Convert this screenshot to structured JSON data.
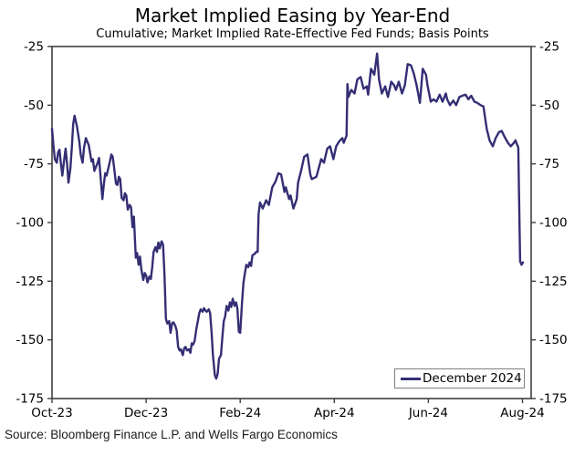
{
  "header": {
    "title": "Market Implied Easing by Year-End",
    "subtitle": "Cumulative; Market Implied Rate-Effective Fed Funds; Basis Points"
  },
  "source_note": "Source: Bloomberg Finance L.P. and Wells Fargo Economics",
  "legend": {
    "label": "December 2024"
  },
  "colors": {
    "line": "#342E74",
    "axis": "#3f3f3f",
    "text": "#000000",
    "legend_border": "#7f7f7f",
    "background": "#ffffff"
  },
  "chart_data": {
    "type": "line",
    "title": "Market Implied Easing by Year-End",
    "subtitle": "Cumulative; Market Implied Rate-Effective Fed Funds; Basis Points",
    "xlabel": "",
    "ylabel": "Basis Points",
    "ylim": [
      -175,
      -25
    ],
    "y_ticks": [
      -25,
      -50,
      -75,
      -100,
      -125,
      -150,
      -175
    ],
    "y_axis_sides": [
      "left",
      "right"
    ],
    "x_tick_labels": [
      "Oct-23",
      "Dec-23",
      "Feb-24",
      "Apr-24",
      "Jun-24",
      "Aug-24"
    ],
    "x_tick_positions_months": [
      0,
      2,
      4,
      6,
      8,
      10
    ],
    "x_unit": "months since Oct-2023",
    "grid": false,
    "legend_position": "lower right",
    "series": [
      {
        "name": "December 2024",
        "color": "#342E74",
        "points": [
          [
            0,
            -60
          ],
          [
            0.03,
            -67
          ],
          [
            0.06,
            -73
          ],
          [
            0.1,
            -74.5
          ],
          [
            0.13,
            -70
          ],
          [
            0.16,
            -69
          ],
          [
            0.19,
            -75
          ],
          [
            0.22,
            -80
          ],
          [
            0.26,
            -73
          ],
          [
            0.29,
            -68.5
          ],
          [
            0.32,
            -75
          ],
          [
            0.35,
            -83
          ],
          [
            0.39,
            -77
          ],
          [
            0.42,
            -68
          ],
          [
            0.45,
            -58
          ],
          [
            0.48,
            -54.5
          ],
          [
            0.53,
            -59
          ],
          [
            0.58,
            -65.5
          ],
          [
            0.61,
            -71
          ],
          [
            0.65,
            -74.5
          ],
          [
            0.68,
            -68
          ],
          [
            0.72,
            -64
          ],
          [
            0.78,
            -67
          ],
          [
            0.84,
            -74
          ],
          [
            0.87,
            -73
          ],
          [
            0.9,
            -78
          ],
          [
            0.94,
            -76
          ],
          [
            0.97,
            -74.5
          ],
          [
            1.0,
            -72.5
          ],
          [
            1.03,
            -80
          ],
          [
            1.07,
            -90
          ],
          [
            1.1,
            -84
          ],
          [
            1.13,
            -79
          ],
          [
            1.16,
            -80
          ],
          [
            1.19,
            -77.5
          ],
          [
            1.23,
            -74
          ],
          [
            1.26,
            -71
          ],
          [
            1.29,
            -72
          ],
          [
            1.32,
            -76.5
          ],
          [
            1.36,
            -83.5
          ],
          [
            1.39,
            -84
          ],
          [
            1.42,
            -80.5
          ],
          [
            1.45,
            -81.5
          ],
          [
            1.48,
            -89.5
          ],
          [
            1.52,
            -90.5
          ],
          [
            1.55,
            -87.5
          ],
          [
            1.58,
            -88.5
          ],
          [
            1.61,
            -94.5
          ],
          [
            1.65,
            -92.5
          ],
          [
            1.68,
            -93.5
          ],
          [
            1.71,
            -102
          ],
          [
            1.74,
            -97.5
          ],
          [
            1.78,
            -115
          ],
          [
            1.81,
            -113
          ],
          [
            1.84,
            -118
          ],
          [
            1.87,
            -114.5
          ],
          [
            1.9,
            -120
          ],
          [
            1.94,
            -124.5
          ],
          [
            1.97,
            -121.5
          ],
          [
            2.0,
            -122.5
          ],
          [
            2.03,
            -125.5
          ],
          [
            2.07,
            -123
          ],
          [
            2.1,
            -124
          ],
          [
            2.13,
            -119
          ],
          [
            2.16,
            -112.5
          ],
          [
            2.2,
            -110.5
          ],
          [
            2.23,
            -112.5
          ],
          [
            2.26,
            -108.5
          ],
          [
            2.29,
            -111
          ],
          [
            2.33,
            -108
          ],
          [
            2.36,
            -109.5
          ],
          [
            2.39,
            -122
          ],
          [
            2.42,
            -141
          ],
          [
            2.45,
            -143
          ],
          [
            2.49,
            -142
          ],
          [
            2.52,
            -147
          ],
          [
            2.55,
            -143
          ],
          [
            2.58,
            -142.5
          ],
          [
            2.62,
            -144
          ],
          [
            2.65,
            -146
          ],
          [
            2.68,
            -153
          ],
          [
            2.71,
            -154.5
          ],
          [
            2.74,
            -154
          ],
          [
            2.78,
            -156.5
          ],
          [
            2.81,
            -153.5
          ],
          [
            2.84,
            -153
          ],
          [
            2.87,
            -154.5
          ],
          [
            2.91,
            -154
          ],
          [
            2.94,
            -155.5
          ],
          [
            2.97,
            -151.5
          ],
          [
            3.0,
            -152
          ],
          [
            3.03,
            -150.5
          ],
          [
            3.07,
            -145
          ],
          [
            3.1,
            -142
          ],
          [
            3.13,
            -138.5
          ],
          [
            3.16,
            -137
          ],
          [
            3.2,
            -138
          ],
          [
            3.23,
            -136.5
          ],
          [
            3.26,
            -137.5
          ],
          [
            3.29,
            -138
          ],
          [
            3.33,
            -137
          ],
          [
            3.36,
            -138.5
          ],
          [
            3.39,
            -146.5
          ],
          [
            3.42,
            -156.5
          ],
          [
            3.46,
            -165
          ],
          [
            3.49,
            -166.5
          ],
          [
            3.52,
            -164.5
          ],
          [
            3.55,
            -158
          ],
          [
            3.59,
            -156.5
          ],
          [
            3.62,
            -149
          ],
          [
            3.65,
            -142
          ],
          [
            3.68,
            -140
          ],
          [
            3.71,
            -135.5
          ],
          [
            3.75,
            -137.5
          ],
          [
            3.78,
            -134
          ],
          [
            3.81,
            -136
          ],
          [
            3.84,
            -132.5
          ],
          [
            3.88,
            -135.5
          ],
          [
            3.91,
            -134
          ],
          [
            3.94,
            -136.5
          ],
          [
            3.97,
            -146.5
          ],
          [
            4.0,
            -147
          ],
          [
            4.04,
            -133.5
          ],
          [
            4.07,
            -125.5
          ],
          [
            4.1,
            -121.5
          ],
          [
            4.13,
            -118
          ],
          [
            4.17,
            -119
          ],
          [
            4.2,
            -117
          ],
          [
            4.23,
            -118.5
          ],
          [
            4.26,
            -114
          ],
          [
            4.3,
            -113.5
          ],
          [
            4.34,
            -112.5
          ],
          [
            4.37,
            -112.5
          ],
          [
            4.39,
            -96.5
          ],
          [
            4.42,
            -91.5
          ],
          [
            4.48,
            -94
          ],
          [
            4.55,
            -90.5
          ],
          [
            4.61,
            -92.5
          ],
          [
            4.68,
            -85
          ],
          [
            4.75,
            -82.5
          ],
          [
            4.81,
            -79
          ],
          [
            4.87,
            -79.5
          ],
          [
            4.94,
            -87
          ],
          [
            4.97,
            -85
          ],
          [
            5.04,
            -90
          ],
          [
            5.07,
            -88.5
          ],
          [
            5.13,
            -94
          ],
          [
            5.2,
            -90
          ],
          [
            5.23,
            -83
          ],
          [
            5.3,
            -77.5
          ],
          [
            5.36,
            -72
          ],
          [
            5.43,
            -71
          ],
          [
            5.49,
            -79.5
          ],
          [
            5.52,
            -81.5
          ],
          [
            5.62,
            -80.5
          ],
          [
            5.72,
            -73
          ],
          [
            5.78,
            -74.5
          ],
          [
            5.85,
            -68.5
          ],
          [
            5.91,
            -67.5
          ],
          [
            5.98,
            -73
          ],
          [
            6.04,
            -67.5
          ],
          [
            6.1,
            -65.5
          ],
          [
            6.17,
            -64
          ],
          [
            6.2,
            -66
          ],
          [
            6.23,
            -64.5
          ],
          [
            6.26,
            -63
          ],
          [
            6.28,
            -41
          ],
          [
            6.3,
            -46.5
          ],
          [
            6.36,
            -43.5
          ],
          [
            6.43,
            -45
          ],
          [
            6.49,
            -39
          ],
          [
            6.56,
            -38
          ],
          [
            6.62,
            -43
          ],
          [
            6.69,
            -42
          ],
          [
            6.72,
            -45.5
          ],
          [
            6.78,
            -34.5
          ],
          [
            6.85,
            -37
          ],
          [
            6.91,
            -28
          ],
          [
            6.95,
            -39
          ],
          [
            7.01,
            -45
          ],
          [
            7.08,
            -42
          ],
          [
            7.14,
            -46.5
          ],
          [
            7.21,
            -40
          ],
          [
            7.27,
            -41.5
          ],
          [
            7.31,
            -43.5
          ],
          [
            7.37,
            -40
          ],
          [
            7.44,
            -45
          ],
          [
            7.5,
            -41.5
          ],
          [
            7.56,
            -32.5
          ],
          [
            7.63,
            -33
          ],
          [
            7.69,
            -36.5
          ],
          [
            7.75,
            -41.5
          ],
          [
            7.82,
            -49
          ],
          [
            7.88,
            -34.5
          ],
          [
            7.95,
            -37
          ],
          [
            7.98,
            -41.5
          ],
          [
            8.05,
            -48.5
          ],
          [
            8.11,
            -47.5
          ],
          [
            8.17,
            -48.5
          ],
          [
            8.24,
            -45.5
          ],
          [
            8.3,
            -48.5
          ],
          [
            8.37,
            -45
          ],
          [
            8.4,
            -47.5
          ],
          [
            8.46,
            -50
          ],
          [
            8.53,
            -48
          ],
          [
            8.59,
            -50
          ],
          [
            8.66,
            -46.5
          ],
          [
            8.72,
            -46
          ],
          [
            8.79,
            -45.5
          ],
          [
            8.85,
            -47.5
          ],
          [
            8.91,
            -46
          ],
          [
            8.98,
            -48.5
          ],
          [
            9.04,
            -49
          ],
          [
            9.11,
            -50
          ],
          [
            9.17,
            -50.5
          ],
          [
            9.24,
            -60
          ],
          [
            9.3,
            -65
          ],
          [
            9.37,
            -67.5
          ],
          [
            9.43,
            -64
          ],
          [
            9.5,
            -61.5
          ],
          [
            9.56,
            -61
          ],
          [
            9.62,
            -63.5
          ],
          [
            9.69,
            -66
          ],
          [
            9.75,
            -67.5
          ],
          [
            9.82,
            -66
          ],
          [
            9.85,
            -65
          ],
          [
            9.88,
            -66.5
          ],
          [
            9.91,
            -68
          ],
          [
            9.95,
            -116.5
          ],
          [
            9.98,
            -118
          ],
          [
            10.01,
            -117
          ]
        ]
      }
    ]
  }
}
